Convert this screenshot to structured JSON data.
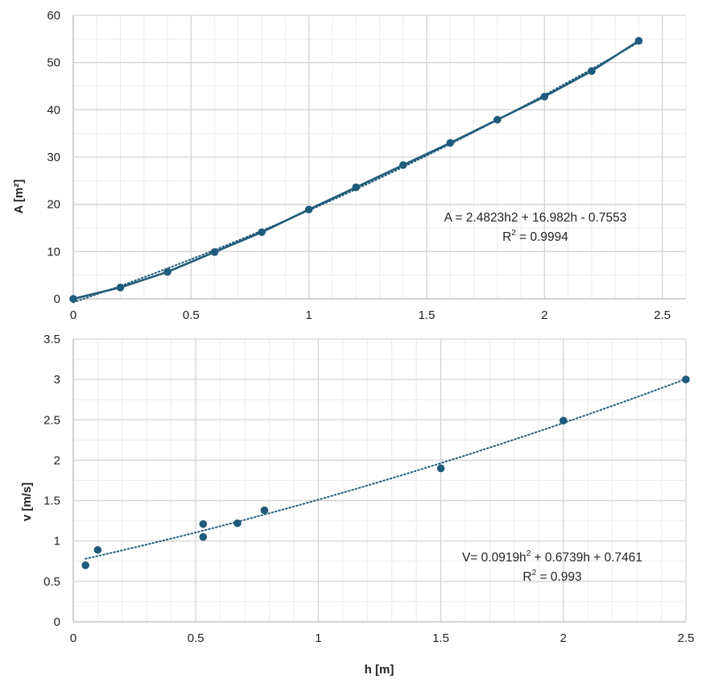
{
  "colors": {
    "series": "#1f5b7a",
    "major_grid": "#d4d4d4",
    "minor_grid": "#ececec",
    "axis": "#bfbfbf"
  },
  "chart_data": [
    {
      "type": "line",
      "xlabel": "",
      "ylabel": "A [m²]",
      "xlim": [
        0,
        2.6
      ],
      "ylim": [
        0,
        60
      ],
      "xticks": [
        0,
        0.5,
        1,
        1.5,
        2,
        2.5
      ],
      "xtick_labels": [
        "0",
        "0.5",
        "1",
        "1.5",
        "2",
        "2.5"
      ],
      "yticks": [
        0,
        10,
        20,
        30,
        40,
        50,
        60
      ],
      "ytick_labels": [
        "0",
        "10",
        "20",
        "30",
        "40",
        "50",
        "60"
      ],
      "grid": true,
      "series": [
        {
          "x": [
            0,
            0.2,
            0.4,
            0.6,
            0.8,
            1.0,
            1.2,
            1.4,
            1.6,
            1.8,
            2.0,
            2.2,
            2.4
          ],
          "y": [
            0,
            2.4,
            5.7,
            9.9,
            14.1,
            18.9,
            23.6,
            28.3,
            33.0,
            37.9,
            42.8,
            48.2,
            54.6
          ],
          "markers": true,
          "line": "solid"
        }
      ],
      "trendline": {
        "type": "polynomial",
        "coefficients": [
          2.4823,
          16.982,
          -0.7553
        ],
        "style": "dotted",
        "r2": 0.9994
      },
      "equation_text": {
        "prefix": "A = 2.4823h2 + 16.982h - 0.7553",
        "r2_base": "R",
        "r2_sup": "2",
        "r2_rest": " = 0.9994"
      }
    },
    {
      "type": "scatter",
      "xlabel": "h [m]",
      "ylabel": "v [m/s]",
      "xlim": [
        0,
        2.5
      ],
      "ylim": [
        0,
        3.5
      ],
      "xticks": [
        0,
        0.5,
        1,
        1.5,
        2,
        2.5
      ],
      "xtick_labels": [
        "0",
        "0.5",
        "1",
        "1.5",
        "2",
        "2.5"
      ],
      "yticks": [
        0,
        0.5,
        1,
        1.5,
        2,
        2.5,
        3,
        3.5
      ],
      "ytick_labels": [
        "0",
        "0.5",
        "1",
        "1.5",
        "2",
        "2.5",
        "3",
        "3.5"
      ],
      "grid": true,
      "series": [
        {
          "x": [
            0.05,
            0.1,
            0.53,
            0.53,
            0.67,
            0.78,
            1.5,
            2.0,
            2.5
          ],
          "y": [
            0.7,
            0.89,
            1.05,
            1.21,
            1.22,
            1.38,
            1.9,
            2.49,
            3.0
          ],
          "markers": true,
          "line": "none"
        }
      ],
      "trendline": {
        "type": "polynomial",
        "coefficients": [
          0.0919,
          0.6739,
          0.7461
        ],
        "style": "dotted",
        "x_range": [
          0.05,
          2.5
        ],
        "r2": 0.993
      },
      "equation_text": {
        "line1_a": "V= 0.0919h",
        "line1_sup": "2",
        "line1_b": " + 0.6739h + 0.7461",
        "r2_base": "R",
        "r2_sup": "2",
        "r2_rest": " = 0.993"
      }
    }
  ]
}
